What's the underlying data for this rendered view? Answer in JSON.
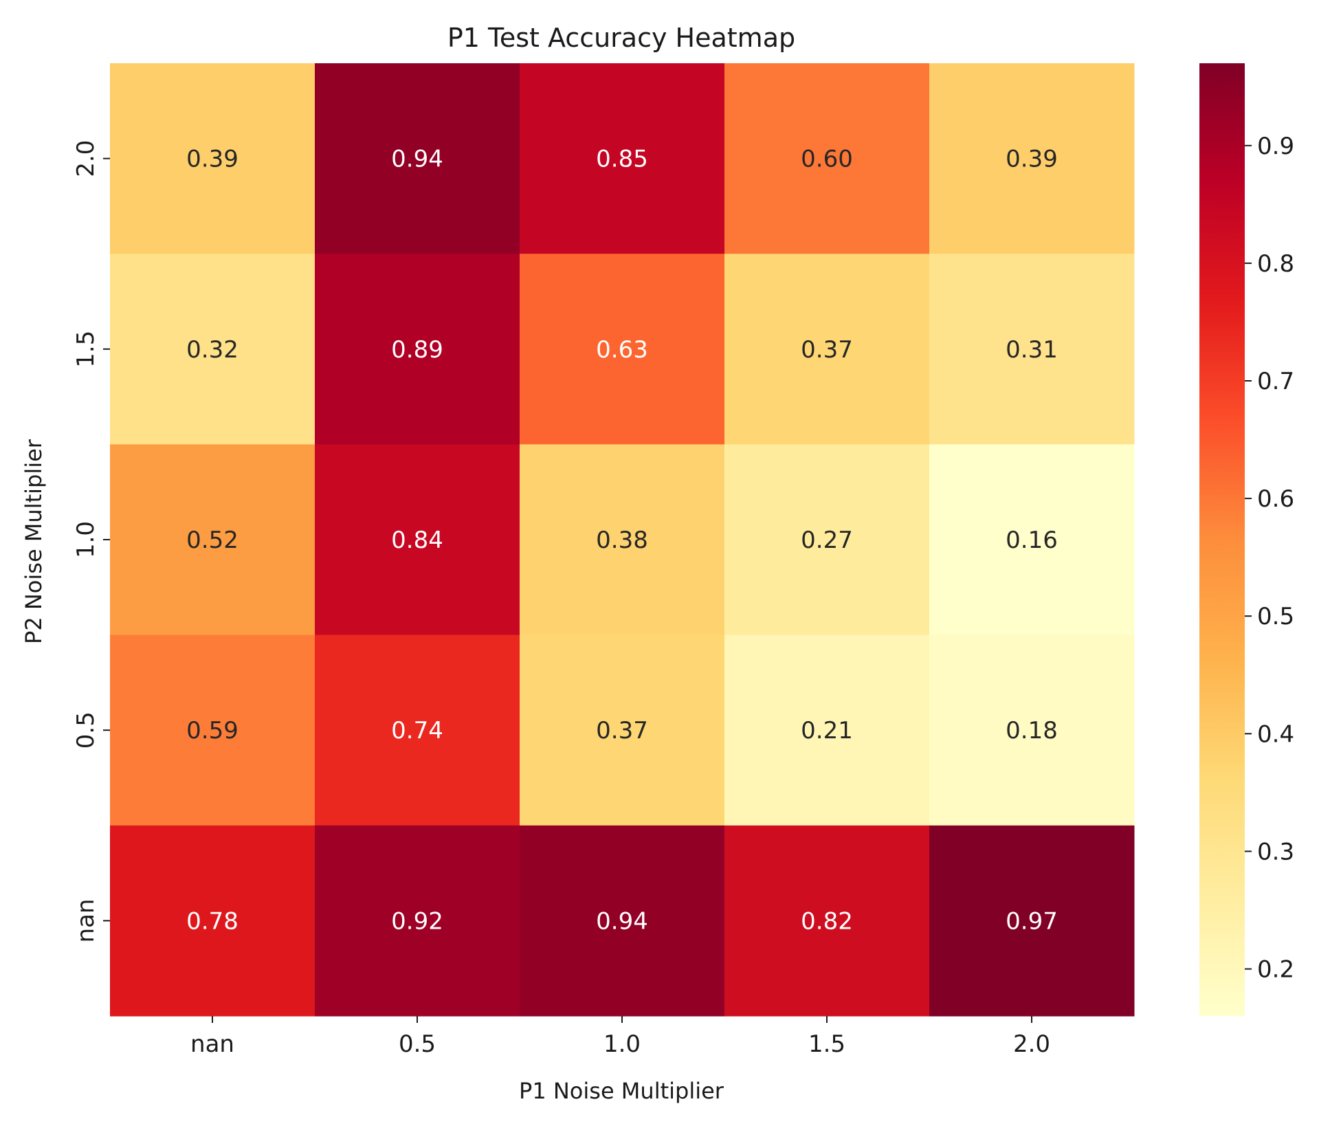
{
  "chart_data": {
    "type": "heatmap",
    "title": "P1 Test Accuracy Heatmap",
    "xlabel": "P1 Noise Multiplier",
    "ylabel": "P2 Noise Multiplier",
    "x_categories": [
      "nan",
      "0.5",
      "1.0",
      "1.5",
      "2.0"
    ],
    "y_categories": [
      "2.0",
      "1.5",
      "1.0",
      "0.5",
      "nan"
    ],
    "values": [
      [
        0.39,
        0.94,
        0.85,
        0.6,
        0.39
      ],
      [
        0.32,
        0.89,
        0.63,
        0.37,
        0.31
      ],
      [
        0.52,
        0.84,
        0.38,
        0.27,
        0.16
      ],
      [
        0.59,
        0.74,
        0.37,
        0.21,
        0.18
      ],
      [
        0.78,
        0.92,
        0.94,
        0.82,
        0.97
      ]
    ],
    "value_format": "0.00",
    "colormap": "YlOrRd",
    "colorbar": {
      "range": [
        0.16,
        0.97
      ],
      "ticks": [
        "0.2",
        "0.3",
        "0.4",
        "0.5",
        "0.6",
        "0.7",
        "0.8",
        "0.9"
      ]
    }
  }
}
